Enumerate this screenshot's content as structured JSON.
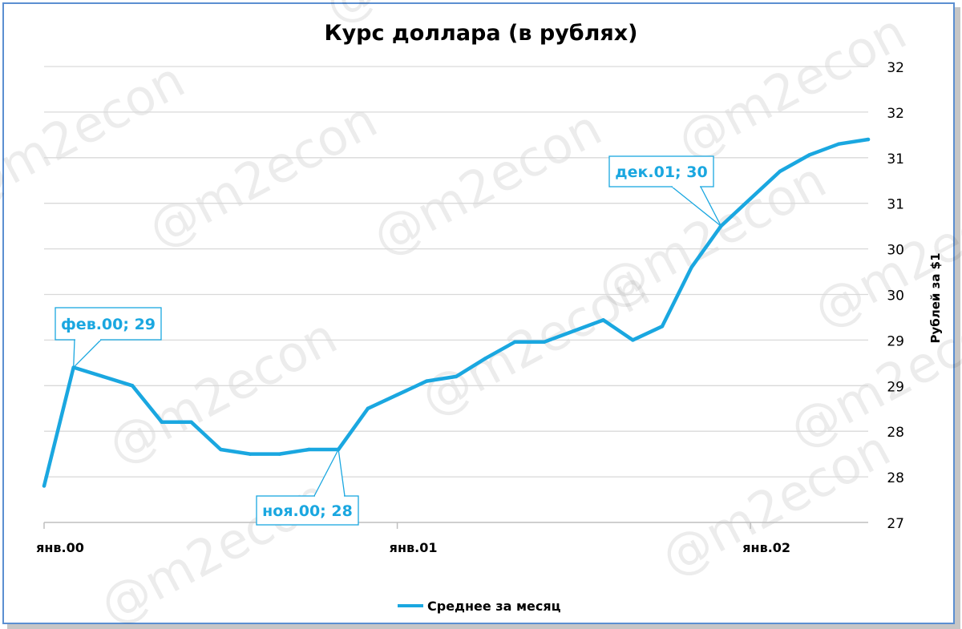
{
  "chart_data": {
    "type": "line",
    "title": "Курс доллара (в рублях)",
    "xlabel": "",
    "ylabel": "Рублей за $1",
    "ylim": [
      27,
      32
    ],
    "yticks": [
      {
        "value": 27.0,
        "label": "27"
      },
      {
        "value": 27.5,
        "label": "28"
      },
      {
        "value": 28.0,
        "label": "28"
      },
      {
        "value": 28.5,
        "label": "29"
      },
      {
        "value": 29.0,
        "label": "29"
      },
      {
        "value": 29.5,
        "label": "30"
      },
      {
        "value": 30.0,
        "label": "30"
      },
      {
        "value": 30.5,
        "label": "31"
      },
      {
        "value": 31.0,
        "label": "31"
      },
      {
        "value": 31.5,
        "label": "32"
      },
      {
        "value": 32.0,
        "label": "32"
      }
    ],
    "xticks": [
      {
        "index": 0,
        "label": "янв.00"
      },
      {
        "index": 12,
        "label": "янв.01"
      },
      {
        "index": 24,
        "label": "янв.02"
      }
    ],
    "grid": true,
    "legend_position": "bottom",
    "series": [
      {
        "name": "Среднее за месяц",
        "color": "#1aa7e0",
        "x": [
          "янв.00",
          "фев.00",
          "мар.00",
          "апр.00",
          "май.00",
          "июн.00",
          "июл.00",
          "авг.00",
          "сен.00",
          "окт.00",
          "ноя.00",
          "дек.00",
          "янв.01",
          "фев.01",
          "мар.01",
          "апр.01",
          "май.01",
          "июн.01",
          "июл.01",
          "авг.01",
          "сен.01",
          "окт.01",
          "ноя.01",
          "дек.01",
          "янв.02",
          "фев.02",
          "мар.02",
          "апр.02",
          "май.02"
        ],
        "values": [
          27.4,
          28.7,
          28.6,
          28.5,
          28.1,
          28.1,
          27.8,
          27.75,
          27.75,
          27.8,
          27.8,
          28.25,
          28.4,
          28.55,
          28.6,
          28.8,
          28.98,
          28.98,
          29.1,
          29.22,
          29.0,
          29.15,
          29.8,
          30.25,
          30.55,
          30.85,
          31.03,
          31.15,
          31.2
        ]
      }
    ],
    "annotations": [
      {
        "index": 1,
        "text": "фев.00; 29"
      },
      {
        "index": 10,
        "text": "ноя.00; 28"
      },
      {
        "index": 23,
        "text": "дек.01; 30"
      }
    ],
    "watermark": "@m2econ"
  }
}
